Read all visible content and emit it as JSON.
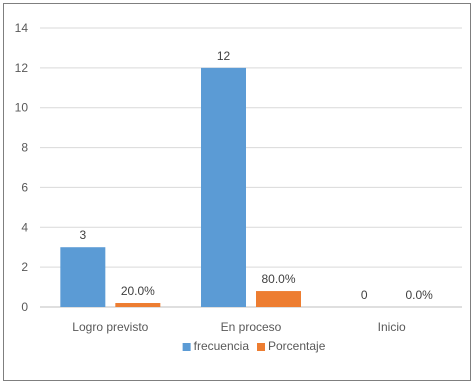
{
  "chart_data": {
    "type": "bar",
    "title": "",
    "xlabel": "",
    "ylabel": "",
    "categories": [
      "Logro previsto",
      "En proceso",
      "Inicio"
    ],
    "ylim": [
      0,
      14
    ],
    "yticks": [
      0,
      2,
      4,
      6,
      8,
      10,
      12,
      14
    ],
    "grid": true,
    "legend_position": "bottom",
    "series": [
      {
        "name": "frecuencia",
        "values": [
          3,
          12,
          0
        ],
        "labels": [
          "3",
          "12",
          "0"
        ],
        "color": "#5b9bd5"
      },
      {
        "name": "Porcentaje",
        "values": [
          0.2,
          0.8,
          0.0
        ],
        "labels": [
          "20.0%",
          "80.0%",
          "0.0%"
        ],
        "color": "#ed7d31"
      }
    ]
  }
}
